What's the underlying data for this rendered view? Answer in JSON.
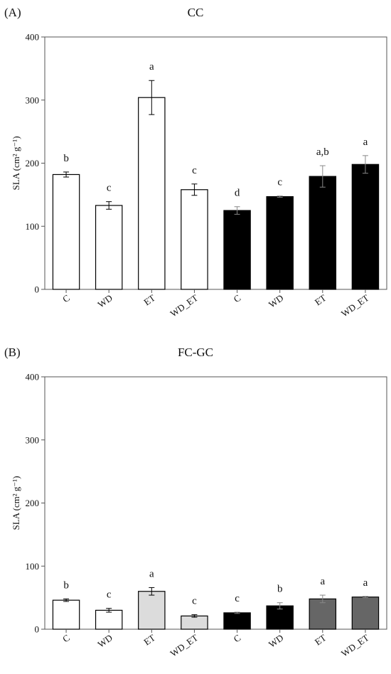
{
  "chart_data": [
    {
      "type": "bar",
      "panel": "(A)",
      "title": "CC",
      "ylabel": "SLA  (cm² g⁻¹)",
      "xlabel": "",
      "ylim": [
        0,
        400
      ],
      "yticks": [
        "0",
        "100",
        "200",
        "300",
        "400"
      ],
      "grid": false,
      "categories": [
        "C",
        "WD",
        "ET",
        "WD_ET",
        "C",
        "WD",
        "ET",
        "WD_ET"
      ],
      "values": [
        182,
        133,
        304,
        158,
        125,
        147,
        179,
        198
      ],
      "errors": [
        4,
        6,
        27,
        9,
        6,
        1,
        17,
        14
      ],
      "letters": [
        "b",
        "c",
        "a",
        "c",
        "d",
        "c",
        "a,b",
        "a"
      ],
      "colors": [
        "#ffffff",
        "#ffffff",
        "#ffffff",
        "#ffffff",
        "#000000",
        "#000000",
        "#000000",
        "#000000"
      ]
    },
    {
      "type": "bar",
      "panel": "(B)",
      "title": "FC-GC",
      "ylabel": "SLA  (cm² g⁻¹)",
      "xlabel": "",
      "ylim": [
        0,
        400
      ],
      "yticks": [
        "0",
        "100",
        "200",
        "300",
        "400"
      ],
      "grid": false,
      "categories": [
        "C",
        "WD",
        "ET",
        "WD_ET",
        "C",
        "WD",
        "ET",
        "WD_ET"
      ],
      "values": [
        46,
        30,
        60,
        21,
        26,
        37,
        48,
        51
      ],
      "errors": [
        2,
        3,
        6,
        2,
        1,
        5,
        6,
        1
      ],
      "letters": [
        "b",
        "c",
        "a",
        "c",
        "c",
        "b",
        "a",
        "a"
      ],
      "colors": [
        "#ffffff",
        "#ffffff",
        "#dcdcdc",
        "#dcdcdc",
        "#000000",
        "#000000",
        "#666666",
        "#666666"
      ]
    }
  ]
}
